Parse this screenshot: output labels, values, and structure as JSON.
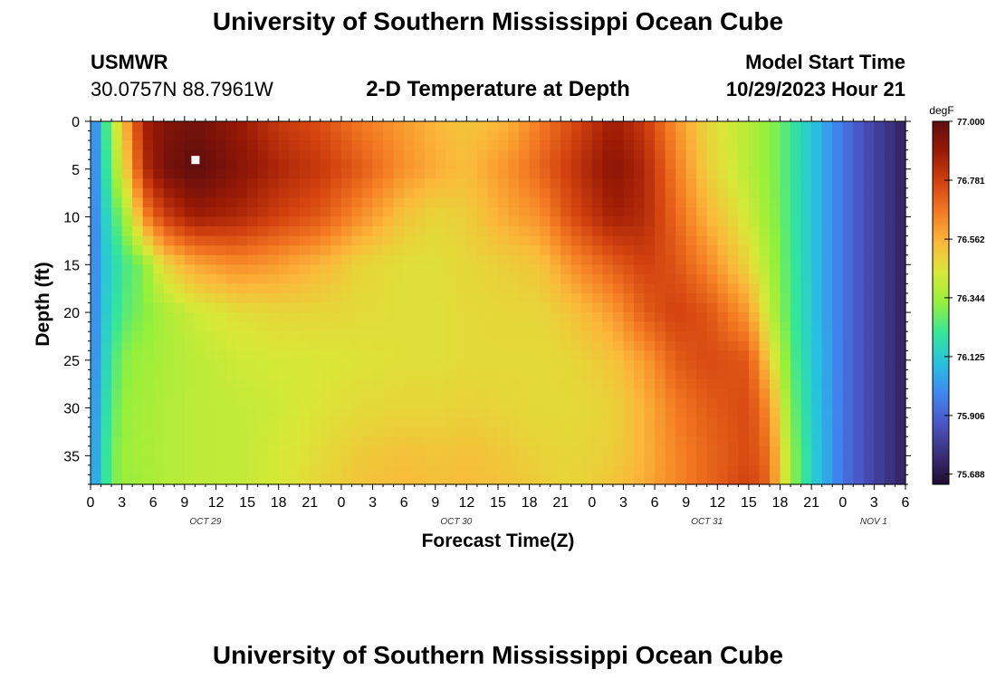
{
  "page": {
    "title": "University of Southern Mississippi Ocean Cube",
    "footer_title": "University of Southern Mississippi Ocean Cube"
  },
  "station": {
    "name": "USMWR",
    "coords": "30.0757N  88.7961W"
  },
  "model": {
    "label": "Model Start Time",
    "start": "10/29/2023 Hour 21"
  },
  "chart_data": {
    "type": "heatmap",
    "title": "2-D Temperature at Depth",
    "xlabel": "Forecast Time(Z)",
    "ylabel": "Depth (ft)",
    "x_unit": "hours from 00Z Oct 29",
    "xlim": [
      0,
      78
    ],
    "ylim": [
      0,
      38
    ],
    "y_ticks": [
      0,
      5,
      10,
      15,
      20,
      25,
      30,
      35
    ],
    "x_tick_labels": [
      "0",
      "3",
      "6",
      "9",
      "12",
      "15",
      "18",
      "21",
      "0",
      "3",
      "6",
      "9",
      "12",
      "15",
      "18",
      "21",
      "0",
      "3",
      "6",
      "9",
      "12",
      "15",
      "18",
      "21",
      "0",
      "3",
      "6"
    ],
    "date_labels": [
      {
        "label": "OCT 29",
        "hour": 11
      },
      {
        "label": "OCT 30",
        "hour": 35
      },
      {
        "label": "OCT 31",
        "hour": 59
      },
      {
        "label": "NOV 1",
        "hour": 83
      }
    ],
    "marker": {
      "hour": 10,
      "depth": 4
    },
    "colorbar": {
      "unit": "degF",
      "min": 75.65,
      "max": 77.0,
      "labels": [
        "77.000",
        "76.781",
        "76.562",
        "76.344",
        "76.125",
        "75.906",
        "75.688"
      ],
      "stops": [
        "#200c2e",
        "#3b2f7a",
        "#4a55c4",
        "#3f86f0",
        "#27c2e0",
        "#34e69a",
        "#94f03a",
        "#d9e838",
        "#fbb83a",
        "#f47a22",
        "#d2420f",
        "#9a1a05",
        "#5e0d0e"
      ]
    },
    "time_profiles": [
      {
        "hour": 0,
        "values": [
          75.92,
          75.92,
          75.92,
          75.93,
          75.94,
          75.95,
          75.96,
          75.97,
          75.97
        ]
      },
      {
        "hour": 1,
        "values": [
          76.12,
          76.11,
          76.1,
          76.09,
          76.09,
          76.1,
          76.12,
          76.14,
          76.15
        ]
      },
      {
        "hour": 2,
        "values": [
          76.35,
          76.3,
          76.2,
          76.15,
          76.17,
          76.22,
          76.25,
          76.28,
          76.28
        ]
      },
      {
        "hour": 3,
        "values": [
          76.52,
          76.45,
          76.32,
          76.22,
          76.24,
          76.3,
          76.32,
          76.33,
          76.33
        ]
      },
      {
        "hour": 4,
        "values": [
          76.66,
          76.6,
          76.42,
          76.26,
          76.28,
          76.33,
          76.34,
          76.35,
          76.34
        ]
      },
      {
        "hour": 5,
        "values": [
          76.86,
          76.82,
          76.62,
          76.3,
          76.3,
          76.34,
          76.35,
          76.36,
          76.35
        ]
      },
      {
        "hour": 7,
        "values": [
          76.93,
          76.95,
          76.78,
          76.48,
          76.36,
          76.36,
          76.37,
          76.37,
          76.37
        ]
      },
      {
        "hour": 10,
        "values": [
          76.96,
          77.0,
          76.88,
          76.58,
          76.42,
          76.39,
          76.39,
          76.39,
          76.39
        ]
      },
      {
        "hour": 14,
        "values": [
          76.9,
          76.93,
          76.85,
          76.63,
          76.46,
          76.42,
          76.4,
          76.4,
          76.4
        ]
      },
      {
        "hour": 18,
        "values": [
          76.8,
          76.85,
          76.78,
          76.6,
          76.48,
          76.43,
          76.42,
          76.43,
          76.43
        ]
      },
      {
        "hour": 22,
        "values": [
          76.75,
          76.8,
          76.73,
          76.55,
          76.48,
          76.44,
          76.45,
          76.47,
          76.48
        ]
      },
      {
        "hour": 26,
        "values": [
          76.66,
          76.72,
          76.62,
          76.48,
          76.47,
          76.45,
          76.47,
          76.51,
          76.52
        ]
      },
      {
        "hour": 30,
        "values": [
          76.6,
          76.62,
          76.52,
          76.46,
          76.46,
          76.46,
          76.48,
          76.53,
          76.54
        ]
      },
      {
        "hour": 33,
        "values": [
          76.55,
          76.57,
          76.48,
          76.46,
          76.46,
          76.46,
          76.48,
          76.52,
          76.53
        ]
      },
      {
        "hour": 36,
        "values": [
          76.52,
          76.54,
          76.5,
          76.48,
          76.47,
          76.47,
          76.49,
          76.53,
          76.54
        ]
      },
      {
        "hour": 40,
        "values": [
          76.56,
          76.62,
          76.58,
          76.5,
          76.48,
          76.47,
          76.48,
          76.51,
          76.52
        ]
      },
      {
        "hour": 43,
        "values": [
          76.66,
          76.7,
          76.62,
          76.52,
          76.48,
          76.47,
          76.47,
          76.49,
          76.5
        ]
      },
      {
        "hour": 46,
        "values": [
          76.75,
          76.8,
          76.75,
          76.62,
          76.52,
          76.48,
          76.47,
          76.48,
          76.48
        ]
      },
      {
        "hour": 50,
        "values": [
          76.88,
          76.92,
          76.87,
          76.72,
          76.6,
          76.52,
          76.49,
          76.5,
          76.52
        ]
      },
      {
        "hour": 53,
        "values": [
          76.8,
          76.85,
          76.84,
          76.78,
          76.72,
          76.6,
          76.56,
          76.56,
          76.57
        ]
      },
      {
        "hour": 56,
        "values": [
          76.62,
          76.66,
          76.7,
          76.74,
          76.78,
          76.72,
          76.66,
          76.64,
          76.64
        ]
      },
      {
        "hour": 59,
        "values": [
          76.48,
          76.5,
          76.56,
          76.64,
          76.74,
          76.76,
          76.72,
          76.7,
          76.7
        ]
      },
      {
        "hour": 63,
        "values": [
          76.38,
          76.38,
          76.42,
          76.48,
          76.6,
          76.73,
          76.76,
          76.76,
          76.78
        ]
      },
      {
        "hour": 65,
        "values": [
          76.32,
          76.32,
          76.33,
          76.36,
          76.4,
          76.5,
          76.62,
          76.68,
          76.7
        ]
      },
      {
        "hour": 66,
        "values": [
          76.28,
          76.28,
          76.29,
          76.3,
          76.32,
          76.38,
          76.46,
          76.5,
          76.5
        ]
      },
      {
        "hour": 67,
        "values": [
          76.22,
          76.22,
          76.22,
          76.23,
          76.24,
          76.26,
          76.3,
          76.34,
          76.34
        ]
      },
      {
        "hour": 69,
        "values": [
          76.12,
          76.12,
          76.12,
          76.12,
          76.12,
          76.13,
          76.14,
          76.15,
          76.15
        ]
      },
      {
        "hour": 72,
        "values": [
          75.95,
          75.95,
          75.95,
          75.95,
          75.95,
          75.95,
          75.95,
          75.95,
          75.95
        ]
      },
      {
        "hour": 75,
        "values": [
          75.82,
          75.82,
          75.82,
          75.82,
          75.82,
          75.82,
          75.82,
          75.82,
          75.82
        ]
      },
      {
        "hour": 78,
        "values": [
          75.72,
          75.72,
          75.72,
          75.72,
          75.72,
          75.72,
          75.72,
          75.72,
          75.72
        ]
      }
    ],
    "profile_depths": [
      0,
      5,
      10,
      15,
      20,
      25,
      30,
      35,
      38
    ]
  }
}
